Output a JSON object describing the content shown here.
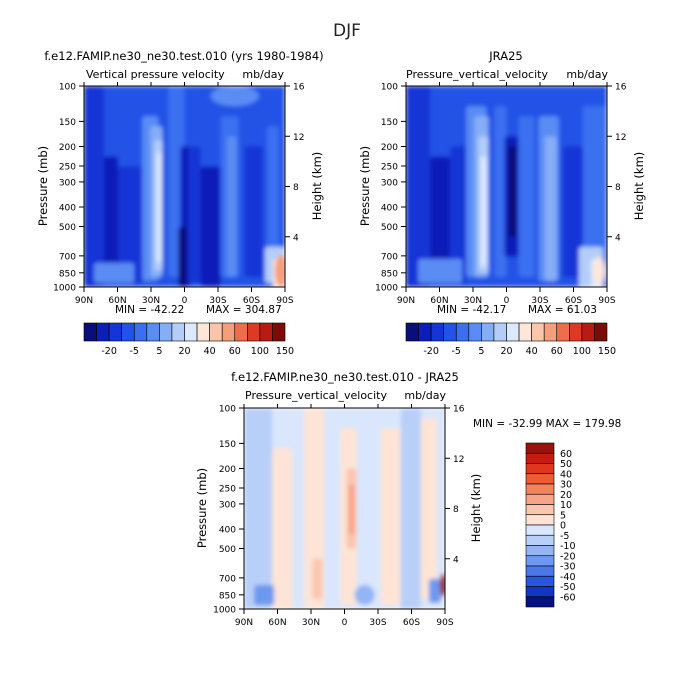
{
  "figure_title": "DJF",
  "colorbar_palette": [
    "#0a0e7a",
    "#0b1fb8",
    "#1436d6",
    "#2153e6",
    "#3a6ff0",
    "#5a8cf4",
    "#86aef6",
    "#b3cdf8",
    "#dce8fb",
    "#fde7d8",
    "#f9c6a9",
    "#f59e7b",
    "#ee6e4c",
    "#dc3a24",
    "#b81b12",
    "#7a0c08"
  ],
  "chart_data": [
    {
      "type": "heatmap",
      "title_left": "f.e12.FAMIP.ne30_ne30.test.010 (yrs 1980-1984)",
      "title_center": "Vertical pressure velocity",
      "title_right": "mb/day",
      "ylabel": "Pressure (mb)",
      "ylabel_right": "Height (km)",
      "xticks": [
        "90N",
        "60N",
        "30N",
        "0",
        "30S",
        "60S",
        "90S"
      ],
      "yticks": [
        "100",
        "150",
        "200",
        "250",
        "300",
        "400",
        "500",
        "700",
        "850",
        "1000"
      ],
      "yticks_right": [
        "4",
        "8",
        "12",
        "16"
      ],
      "ylim": [
        1000,
        100
      ],
      "yscale": "log",
      "min_label": "MIN = -42.22",
      "max_label": "MAX = 304.87",
      "stats": {
        "min": -42.22,
        "max": 304.87
      },
      "colorbar_labels": [
        "-20",
        "-5",
        "5",
        "20",
        "40",
        "60",
        "100",
        "150"
      ]
    },
    {
      "type": "heatmap",
      "title_center": "JRA25",
      "title_center_2": "Pressure_vertical_velocity",
      "title_right": "mb/day",
      "ylabel": "Pressure (mb)",
      "ylabel_right": "Height (km)",
      "xticks": [
        "90N",
        "60N",
        "30N",
        "0",
        "30S",
        "60S",
        "90S"
      ],
      "yticks": [
        "100",
        "150",
        "200",
        "250",
        "300",
        "400",
        "500",
        "700",
        "850",
        "1000"
      ],
      "yticks_right": [
        "4",
        "8",
        "12",
        "16"
      ],
      "ylim": [
        1000,
        100
      ],
      "yscale": "log",
      "min_label": "MIN = -42.17",
      "max_label": "MAX = 61.03",
      "stats": {
        "min": -42.17,
        "max": 61.03
      },
      "colorbar_labels": [
        "-20",
        "-5",
        "5",
        "20",
        "40",
        "60",
        "100",
        "150"
      ]
    },
    {
      "type": "heatmap",
      "title_top": "f.e12.FAMIP.ne30_ne30.test.010 - JRA25",
      "title_center": "Pressure_vertical_velocity",
      "title_right": "mb/day",
      "ylabel": "Pressure (mb)",
      "ylabel_right": "Height (km)",
      "xticks": [
        "90N",
        "60N",
        "30N",
        "0",
        "30S",
        "60S",
        "90S"
      ],
      "yticks": [
        "100",
        "150",
        "200",
        "250",
        "300",
        "400",
        "500",
        "700",
        "850",
        "1000"
      ],
      "yticks_right": [
        "4",
        "8",
        "12",
        "16"
      ],
      "ylim": [
        1000,
        100
      ],
      "yscale": "log",
      "minmax_label": "MIN = -32.99   MAX = 179.98",
      "stats": {
        "min": -32.99,
        "max": 179.98
      },
      "colorbar_labels": [
        "60",
        "50",
        "40",
        "30",
        "20",
        "10",
        "5",
        "0",
        "-5",
        "-10",
        "-20",
        "-30",
        "-40",
        "-50",
        "-60"
      ],
      "colorbar_colors": [
        "#9a1208",
        "#c41d10",
        "#e0361e",
        "#ef5a37",
        "#f4825d",
        "#f7a487",
        "#fac6b0",
        "#fde4d6",
        "#d9e6fb",
        "#b8cff8",
        "#93b5f4",
        "#6e98ef",
        "#4a78e8",
        "#2a56dc",
        "#1235c4",
        "#06107e"
      ]
    }
  ]
}
